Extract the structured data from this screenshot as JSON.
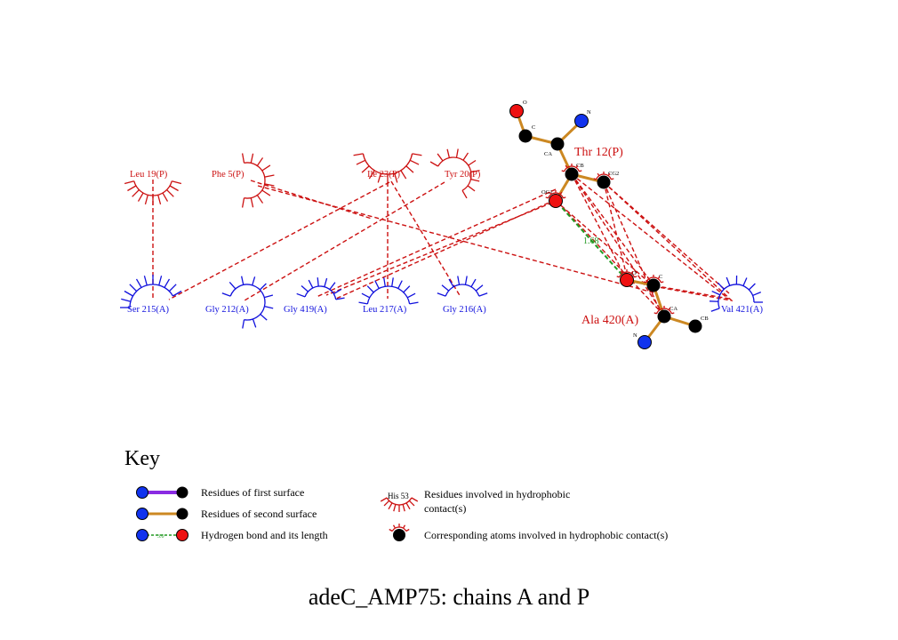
{
  "residues_chain_p": [
    "Leu 19(P)",
    "Phe 5(P)",
    "Ile 23(P)",
    "Tyr 20(P)"
  ],
  "residues_chain_a": [
    "Ser 215(A)",
    "Gly 212(A)",
    "Gly 419(A)",
    "Leu 217(A)",
    "Gly 216(A)",
    "Val 421(A)"
  ],
  "ligand_residues": {
    "thr": {
      "label": "Thr 12(P)",
      "atoms": [
        "O",
        "C",
        "N",
        "CA",
        "CB",
        "CG2",
        "OG1"
      ]
    },
    "ala": {
      "label": "Ala 420(A)",
      "atoms": [
        "O",
        "C",
        "CA",
        "CB",
        "N"
      ]
    }
  },
  "hbond": {
    "length": "1.68"
  },
  "key": {
    "title": "Key",
    "items": [
      "Residues of first surface",
      "Residues of second surface",
      "Hydrogen bond and its length",
      "Residues involved in hydrophobic",
      "contact(s)",
      "Corresponding atoms involved in hydrophobic contact(s)"
    ],
    "hbond_sample_length": "3.0",
    "hydrophobic_sample_label": "His 53"
  },
  "title": "adeC_AMP75: chains A and P",
  "colors": {
    "chain_p": "#cc1111",
    "chain_a": "#1111dd",
    "first_surface_bond": "#8a2be2",
    "second_surface_bond": "#cc8822",
    "hbond": "#229922",
    "contact_line": "#cc1111",
    "oxygen": "#ee1111",
    "nitrogen": "#1133ee",
    "carbon": "#000000"
  }
}
